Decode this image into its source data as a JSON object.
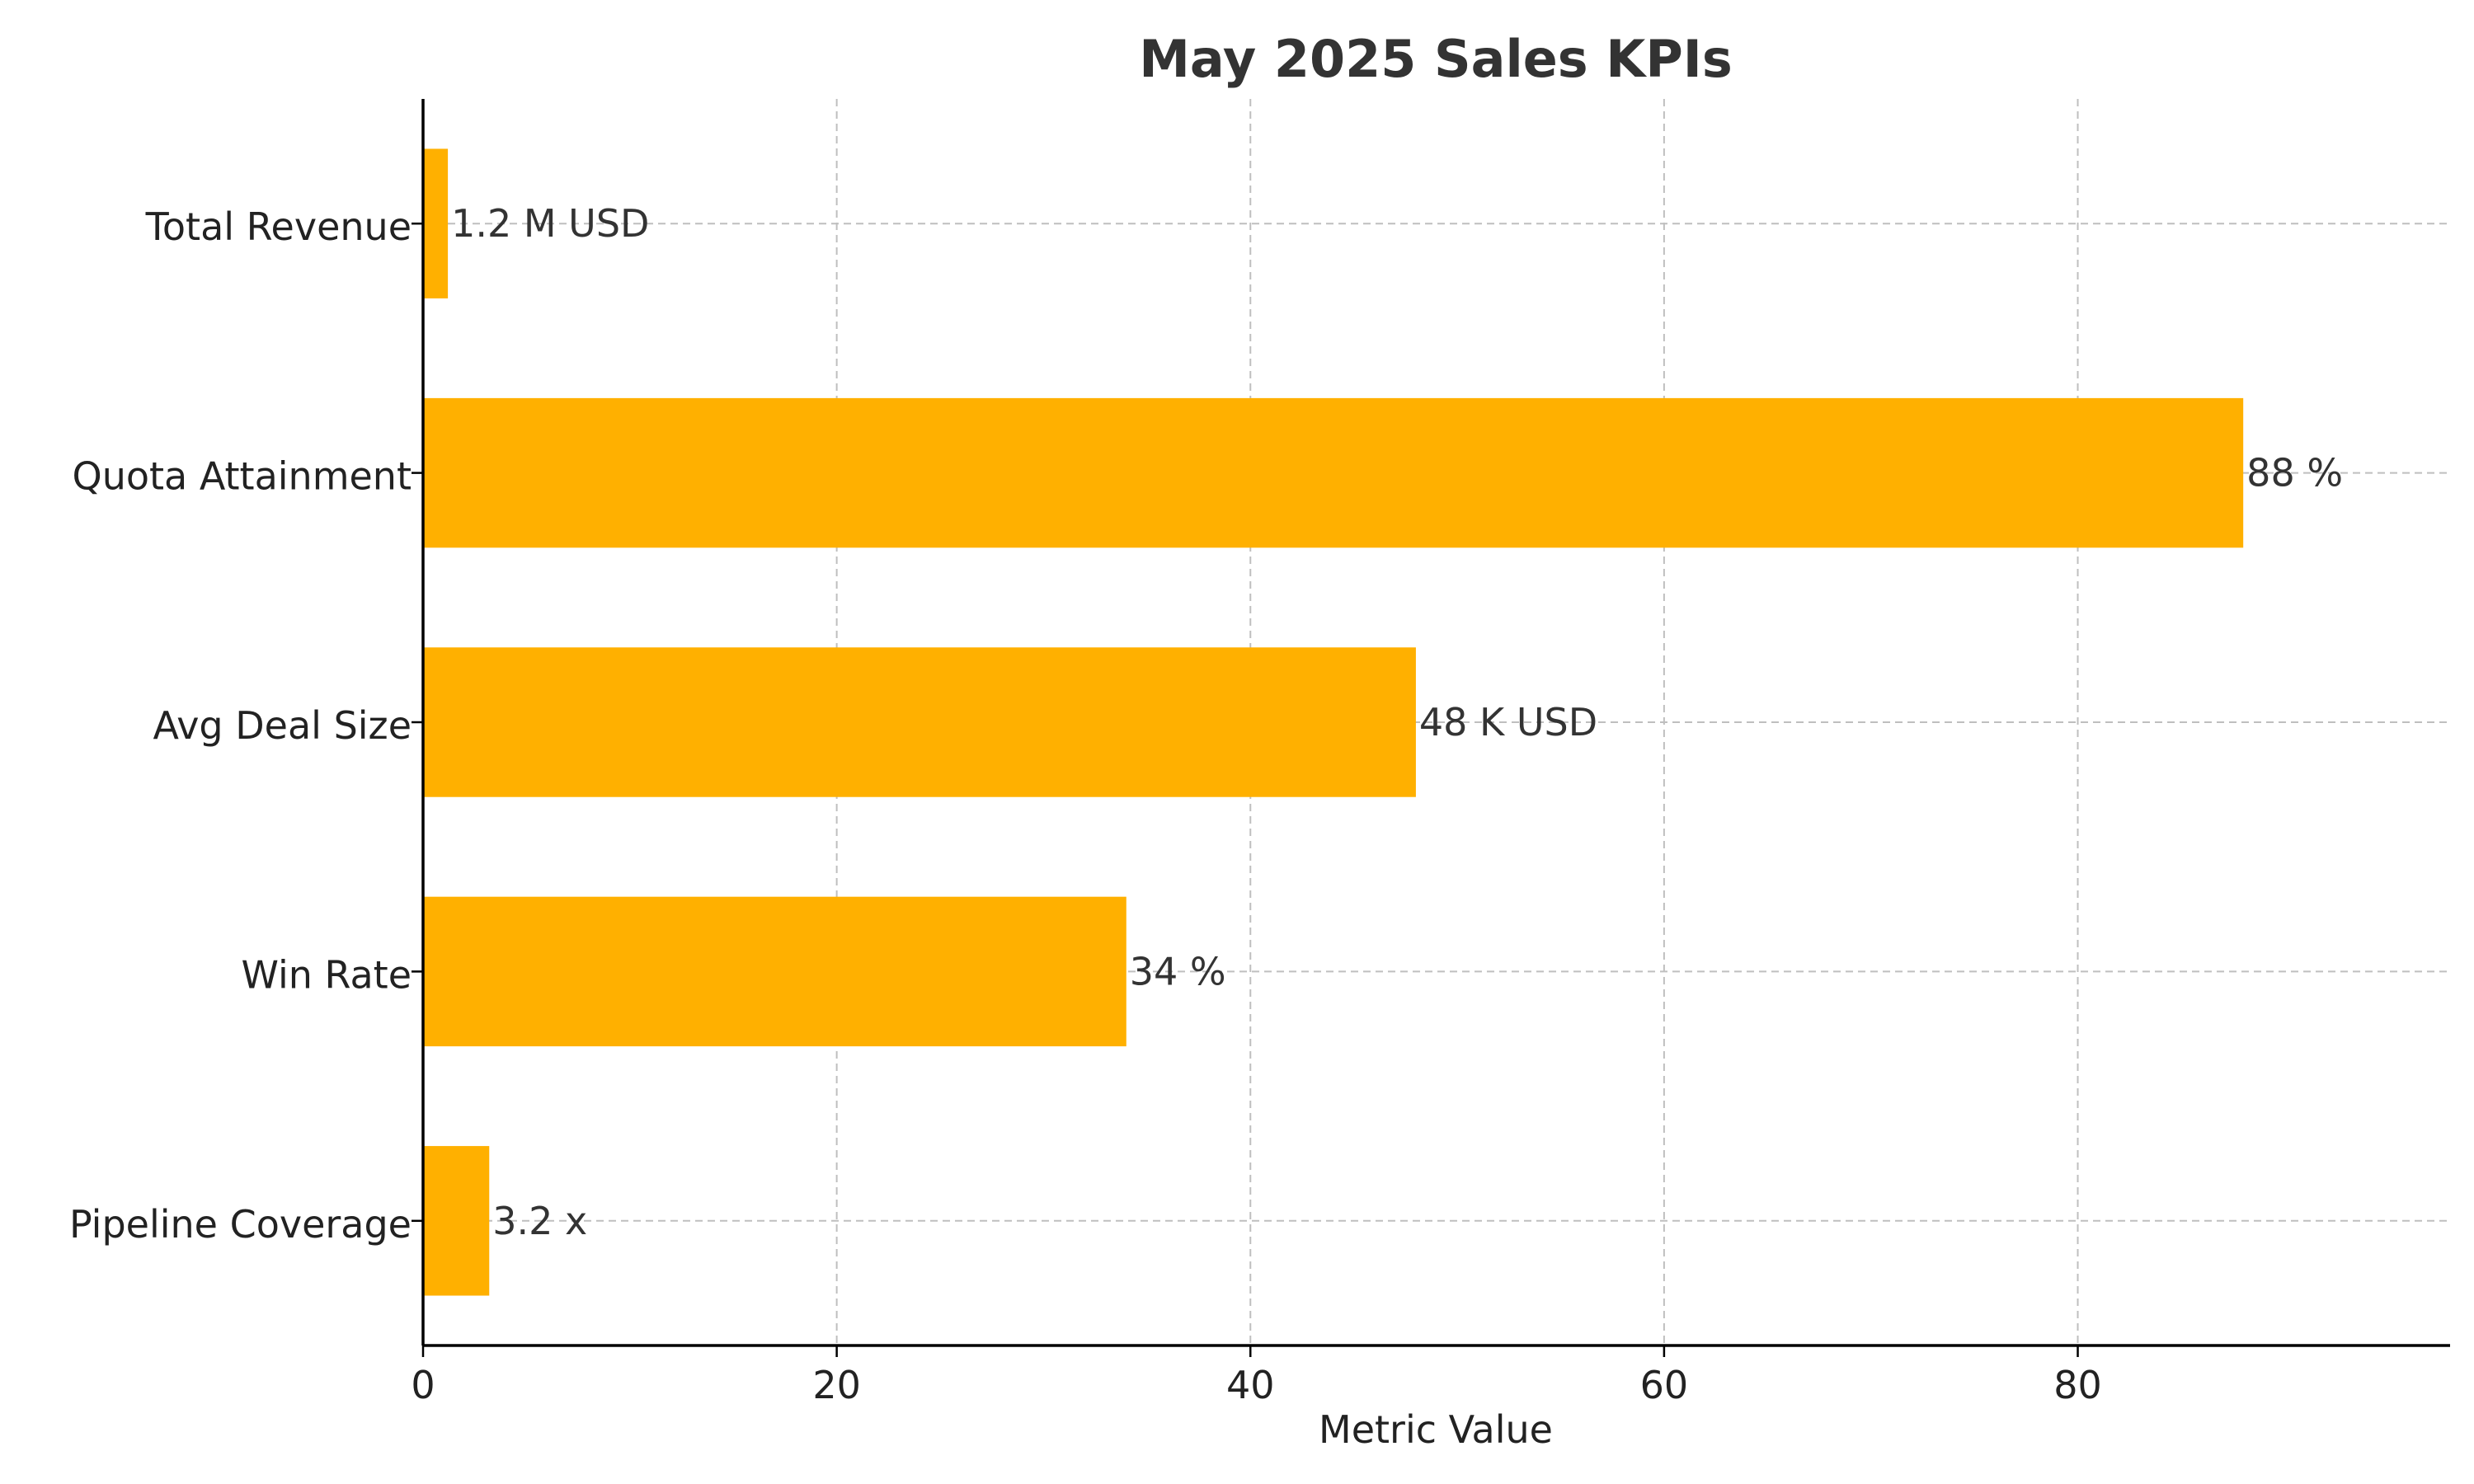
{
  "chart_data": {
    "type": "bar",
    "orientation": "horizontal",
    "title": "May 2025 Sales KPIs",
    "xlabel": "Metric Value",
    "ylabel": "",
    "categories": [
      "Total Revenue",
      "Quota Attainment",
      "Avg Deal Size",
      "Win Rate",
      "Pipeline Coverage"
    ],
    "values": [
      1.2,
      88,
      48,
      34,
      3.2
    ],
    "data_labels": [
      "1.2 M USD",
      "88 %",
      "48 K USD",
      "34 %",
      "3.2 x"
    ],
    "xlim": [
      0,
      98
    ],
    "xticks": [
      0,
      20,
      40,
      60,
      80
    ],
    "xtick_labels": [
      "0",
      "20",
      "40",
      "60",
      "80"
    ],
    "grid": true,
    "bar_color": "#FFB000",
    "text_color": "#333333"
  }
}
